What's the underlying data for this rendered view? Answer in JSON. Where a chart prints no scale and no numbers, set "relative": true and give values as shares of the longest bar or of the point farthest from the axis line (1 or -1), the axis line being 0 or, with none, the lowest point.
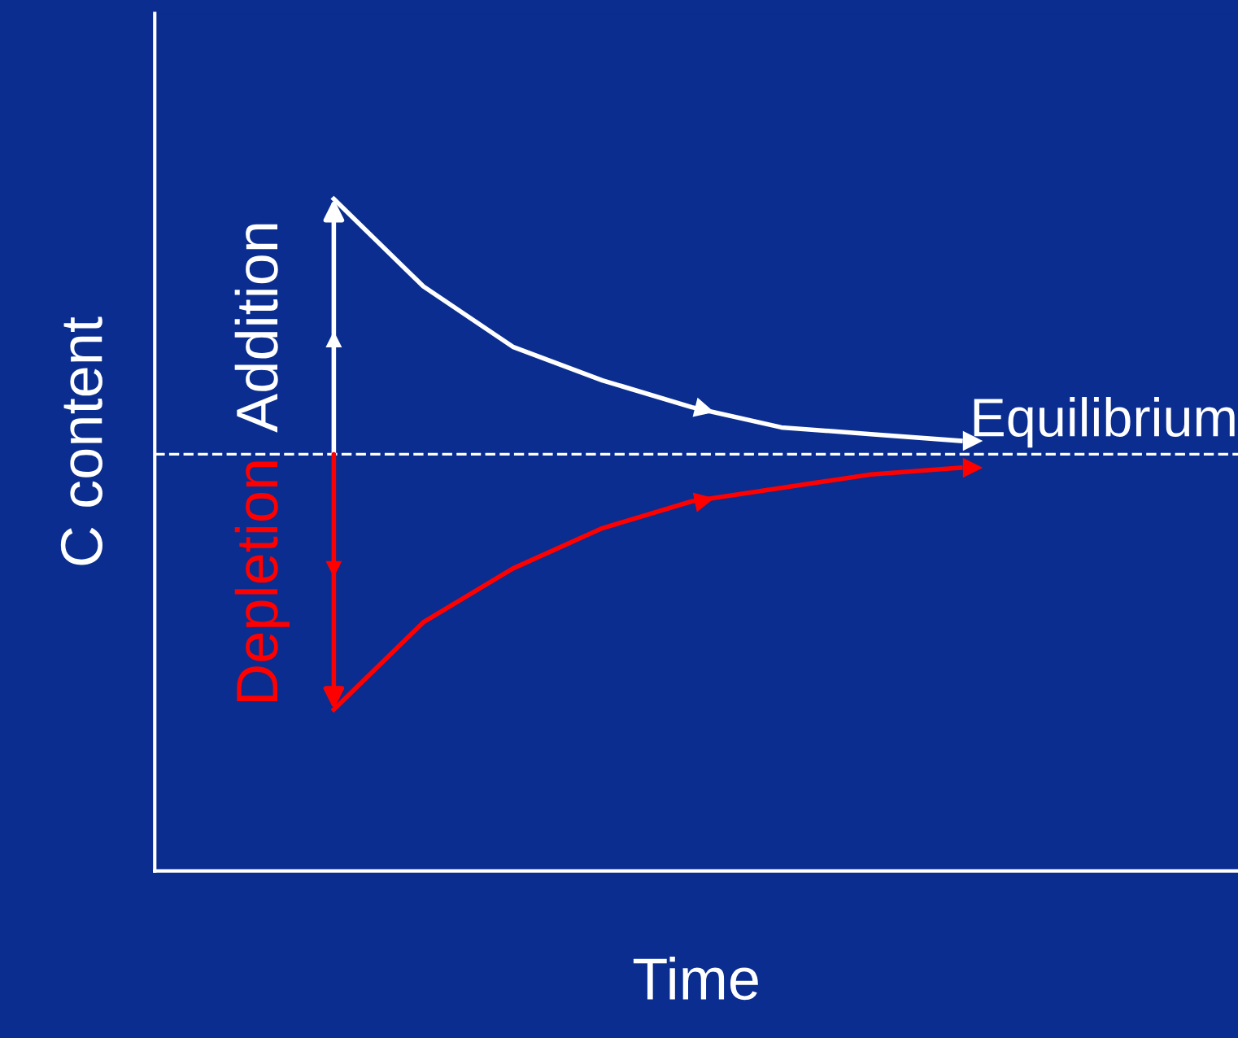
{
  "chart_data": {
    "type": "line",
    "relative": true,
    "xlabel": "Time",
    "ylabel": "C content",
    "categories": [
      null,
      null,
      null,
      null,
      null,
      null,
      null,
      null,
      null,
      null,
      null,
      null,
      null
    ],
    "series": [
      {
        "name": "Addition",
        "color": "#ffffff",
        "values": [
          null,
          null,
          1.0,
          0.87,
          0.78,
          0.73,
          0.69,
          0.66,
          0.65,
          0.64,
          null,
          null,
          null
        ]
      },
      {
        "name": "Depletion",
        "color": "#ff0000",
        "values": [
          null,
          null,
          0.24,
          0.37,
          0.45,
          0.51,
          0.55,
          0.57,
          0.59,
          0.6,
          null,
          null,
          null
        ]
      }
    ],
    "ref_lines": [
      {
        "axis": "y",
        "value": 0.62,
        "label": "Equilibrium",
        "color": "#ffffff",
        "line_style": "dashed"
      }
    ],
    "legend": "left",
    "tick_labels": false,
    "marker": "none",
    "line_style": "solid"
  }
}
